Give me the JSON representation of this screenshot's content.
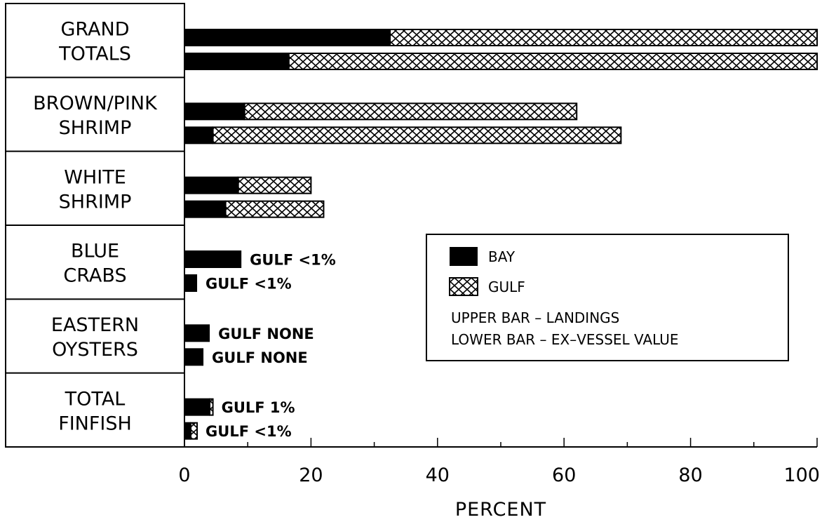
{
  "chart_data": {
    "type": "bar",
    "orientation": "horizontal",
    "stacked": true,
    "categories": [
      [
        "GRAND",
        "TOTALS"
      ],
      [
        "BROWN/PINK",
        "SHRIMP"
      ],
      [
        "WHITE",
        "SHRIMP"
      ],
      [
        "BLUE",
        "CRABS"
      ],
      [
        "EASTERN",
        "OYSTERS"
      ],
      [
        "TOTAL",
        "FINFISH"
      ]
    ],
    "series": [
      {
        "name": "BAY",
        "color": "#000000",
        "upper_landings": [
          32.5,
          9.5,
          8.5,
          9,
          4,
          4
        ],
        "lower_ex_vessel_value": [
          16.5,
          4.5,
          6.5,
          2,
          3,
          1
        ]
      },
      {
        "name": "GULF",
        "pattern": "crosshatch",
        "upper_landings": [
          67.5,
          52.5,
          11.5,
          0,
          0,
          0.5
        ],
        "lower_ex_vessel_value": [
          83.5,
          64.5,
          15.5,
          0,
          0,
          1
        ]
      }
    ],
    "annotations": {
      "upper": [
        "",
        "",
        "",
        "GULF <1%",
        "GULF NONE",
        "GULF 1%"
      ],
      "lower": [
        "",
        "",
        "",
        "GULF <1%",
        "GULF NONE",
        "GULF <1%"
      ]
    },
    "xlabel": "PERCENT",
    "xlim": [
      0,
      100
    ],
    "xticks": [
      0,
      20,
      40,
      60,
      80,
      100
    ],
    "legend": {
      "placement": "right",
      "entries": [
        "BAY",
        "GULF"
      ],
      "notes": [
        "UPPER BAR – LANDINGS",
        "LOWER BAR – EX–VESSEL VALUE"
      ]
    }
  }
}
